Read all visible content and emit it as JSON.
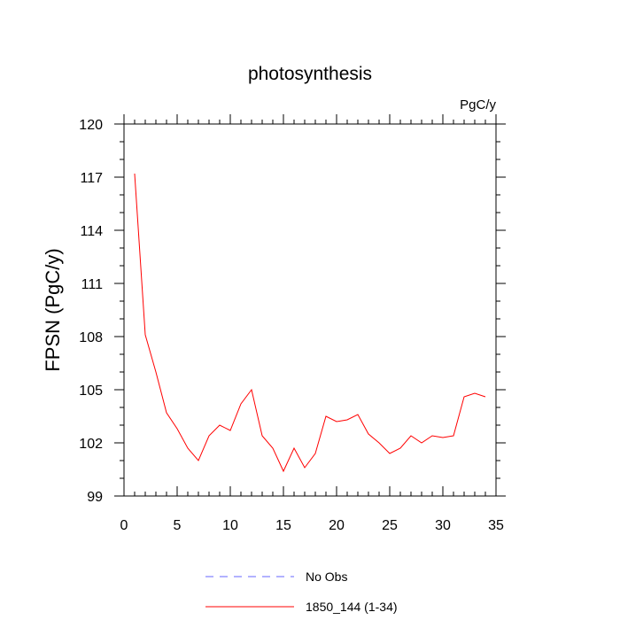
{
  "chart_data": {
    "type": "line",
    "title": "photosynthesis",
    "units_label": "PgC/y",
    "ylabel": "FPSN  (PgC/y)",
    "xlabel": "",
    "xlim": [
      0,
      35
    ],
    "ylim": [
      99,
      120
    ],
    "x_ticks": [
      0,
      5,
      10,
      15,
      20,
      25,
      30,
      35
    ],
    "y_ticks": [
      99,
      102,
      105,
      108,
      111,
      114,
      117,
      120
    ],
    "grid": false,
    "legend_placement": "bottom-center",
    "series": [
      {
        "name": "No Obs",
        "color": "#6666ff",
        "style": "dashed",
        "x": [],
        "values": []
      },
      {
        "name": "1850_144 (1-34)",
        "color": "#ff0000",
        "style": "solid",
        "x": [
          1,
          2,
          3,
          4,
          5,
          6,
          7,
          8,
          9,
          10,
          11,
          12,
          13,
          14,
          15,
          16,
          17,
          18,
          19,
          20,
          21,
          22,
          23,
          24,
          25,
          26,
          27,
          28,
          29,
          30,
          31,
          32,
          33,
          34
        ],
        "values": [
          117.2,
          108.1,
          106.0,
          103.7,
          102.8,
          101.7,
          101.0,
          102.4,
          103.0,
          102.7,
          104.2,
          105.0,
          102.4,
          101.7,
          100.4,
          101.7,
          100.6,
          101.4,
          103.5,
          103.2,
          103.3,
          103.6,
          102.5,
          102.0,
          101.4,
          101.7,
          102.4,
          102.0,
          102.4,
          102.3,
          102.4,
          104.6,
          104.8,
          104.6
        ]
      }
    ]
  }
}
